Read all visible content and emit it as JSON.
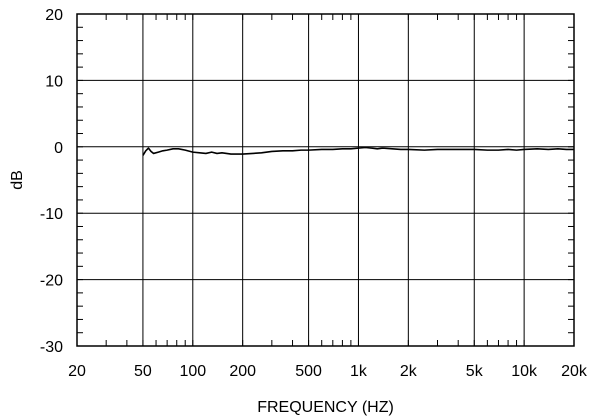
{
  "chart_data": {
    "type": "line",
    "xlabel": "FREQUENCY  (HZ)",
    "ylabel": "dB",
    "x_scale": "log",
    "xlim": [
      20,
      20000
    ],
    "ylim": [
      -30,
      20
    ],
    "grid": true,
    "x_ticks": [
      {
        "value": 20,
        "label": "20"
      },
      {
        "value": 50,
        "label": "50"
      },
      {
        "value": 100,
        "label": "100"
      },
      {
        "value": 200,
        "label": "200"
      },
      {
        "value": 500,
        "label": "500"
      },
      {
        "value": 1000,
        "label": "1k"
      },
      {
        "value": 2000,
        "label": "2k"
      },
      {
        "value": 5000,
        "label": "5k"
      },
      {
        "value": 10000,
        "label": "10k"
      },
      {
        "value": 20000,
        "label": "20k"
      }
    ],
    "y_ticks": [
      {
        "value": 20,
        "label": "20"
      },
      {
        "value": 10,
        "label": "10"
      },
      {
        "value": 0,
        "label": "0"
      },
      {
        "value": -10,
        "label": "-10"
      },
      {
        "value": -20,
        "label": "-20"
      },
      {
        "value": -30,
        "label": "-30"
      }
    ],
    "series": [
      {
        "color": "#000000",
        "points": [
          [
            50,
            -1.3
          ],
          [
            52,
            -0.6
          ],
          [
            54,
            -0.2
          ],
          [
            56,
            -0.7
          ],
          [
            58,
            -1.0
          ],
          [
            62,
            -0.8
          ],
          [
            66,
            -0.6
          ],
          [
            70,
            -0.5
          ],
          [
            76,
            -0.3
          ],
          [
            82,
            -0.3
          ],
          [
            90,
            -0.5
          ],
          [
            100,
            -0.8
          ],
          [
            110,
            -0.9
          ],
          [
            120,
            -1.0
          ],
          [
            130,
            -0.8
          ],
          [
            140,
            -1.0
          ],
          [
            150,
            -0.9
          ],
          [
            170,
            -1.1
          ],
          [
            200,
            -1.1
          ],
          [
            230,
            -1.0
          ],
          [
            260,
            -0.9
          ],
          [
            300,
            -0.7
          ],
          [
            350,
            -0.6
          ],
          [
            400,
            -0.6
          ],
          [
            450,
            -0.5
          ],
          [
            500,
            -0.5
          ],
          [
            600,
            -0.4
          ],
          [
            700,
            -0.4
          ],
          [
            800,
            -0.3
          ],
          [
            900,
            -0.3
          ],
          [
            1000,
            -0.2
          ],
          [
            1100,
            -0.1
          ],
          [
            1200,
            -0.2
          ],
          [
            1300,
            -0.3
          ],
          [
            1400,
            -0.2
          ],
          [
            1600,
            -0.3
          ],
          [
            1800,
            -0.4
          ],
          [
            2000,
            -0.4
          ],
          [
            2500,
            -0.5
          ],
          [
            3000,
            -0.4
          ],
          [
            4000,
            -0.4
          ],
          [
            5000,
            -0.4
          ],
          [
            6000,
            -0.5
          ],
          [
            7000,
            -0.5
          ],
          [
            8000,
            -0.4
          ],
          [
            9000,
            -0.5
          ],
          [
            10000,
            -0.4
          ],
          [
            12000,
            -0.3
          ],
          [
            14000,
            -0.4
          ],
          [
            16000,
            -0.3
          ],
          [
            18000,
            -0.4
          ],
          [
            20000,
            -0.4
          ]
        ]
      }
    ]
  }
}
